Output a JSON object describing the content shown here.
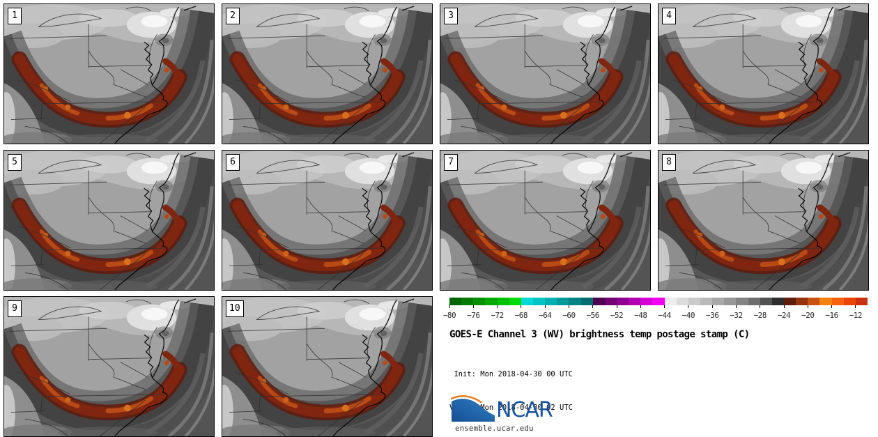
{
  "panel_labels": [
    "1",
    "2",
    "3",
    "4",
    "5",
    "6",
    "7",
    "8",
    "9",
    "10"
  ],
  "colorbar": {
    "unit": "C",
    "value_min": -80,
    "value_max": -10,
    "degrees_per_segment": 2,
    "ticks": [
      "−80",
      "−76",
      "−72",
      "−68",
      "−64",
      "−60",
      "−56",
      "−52",
      "−48",
      "−44",
      "−40",
      "−36",
      "−32",
      "−28",
      "−24",
      "−20",
      "−16",
      "−12"
    ],
    "segment_colors": [
      "#006400",
      "#007a00",
      "#009000",
      "#00a800",
      "#00c000",
      "#00da00",
      "#00d8d8",
      "#00c4c4",
      "#00b0b0",
      "#009a9a",
      "#008484",
      "#006e6e",
      "#500050",
      "#700070",
      "#900090",
      "#b200b2",
      "#d400d4",
      "#f400f4",
      "#ededed",
      "#dcdcdc",
      "#cbcbcb",
      "#bababa",
      "#a9a9a9",
      "#989898",
      "#838383",
      "#6d6d6d",
      "#525252",
      "#2e2e2e",
      "#5e1e0e",
      "#94330e",
      "#c85212",
      "#f5810f",
      "#fa600a",
      "#ea4507",
      "#c83210"
    ]
  },
  "info": {
    "title": "GOES-E Channel 3 (WV) brightness temp postage stamp (C)",
    "init_line": " Init: Mon 2018-04-30 00 UTC",
    "valid_line": "Valid: Mon 2018-04-30 02 UTC"
  },
  "branding": {
    "logo_text": "NCAR",
    "site": "ensemble.ucar.edu",
    "logo_blue": "#1d63ab",
    "logo_orange": "#e87e24"
  },
  "map_palette": {
    "base_gray": "#a2a2a2",
    "light_cloud": "#c3c3c3",
    "bright_cloud": "#f7f7f7",
    "dry_band_dark": "#434343",
    "warm_band_dark": "#802610",
    "warm_band_bright": "#d8701e"
  }
}
